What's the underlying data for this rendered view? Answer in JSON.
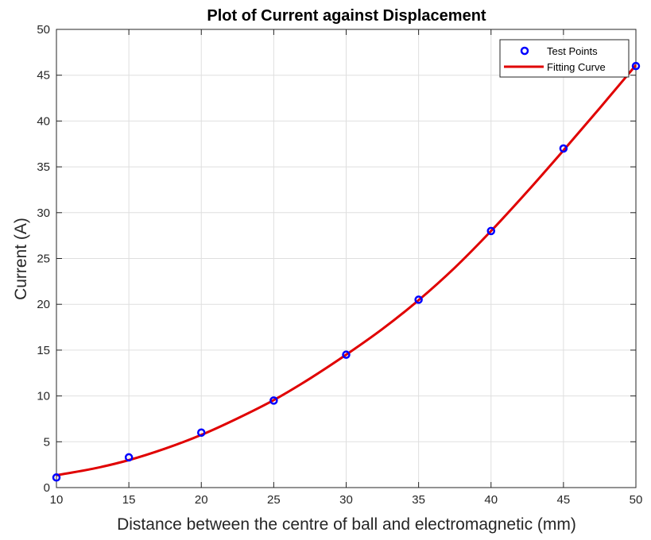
{
  "chart_data": {
    "type": "line",
    "title": "Plot of Current against Displacement",
    "xlabel": "Distance between the centre of ball and electromagnetic (mm)",
    "ylabel": "Current (A)",
    "xlim": [
      10,
      50
    ],
    "ylim": [
      0,
      50
    ],
    "xticks": [
      10,
      15,
      20,
      25,
      30,
      35,
      40,
      45,
      50
    ],
    "yticks": [
      0,
      5,
      10,
      15,
      20,
      25,
      30,
      35,
      40,
      45,
      50
    ],
    "grid": true,
    "legend_position": "top-right",
    "series": [
      {
        "name": "Test Points",
        "kind": "scatter",
        "marker": "circle-open",
        "color": "#0000ff",
        "x": [
          10,
          15,
          20,
          25,
          30,
          35,
          40,
          45,
          50
        ],
        "y": [
          1.1,
          3.3,
          6.0,
          9.5,
          14.5,
          20.5,
          28.0,
          37.0,
          46.0
        ]
      },
      {
        "name": "Fitting Curve",
        "kind": "line",
        "color": "#e00000",
        "x": [
          10,
          12.5,
          15,
          17.5,
          20,
          22.5,
          25,
          27.5,
          30,
          32.5,
          35,
          37.5,
          40,
          42.5,
          45,
          47.5,
          50
        ],
        "y": [
          1.35,
          2.05,
          3.0,
          4.25,
          5.75,
          7.55,
          9.55,
          11.9,
          14.5,
          17.3,
          20.45,
          24.0,
          28.0,
          32.3,
          36.8,
          41.4,
          46.1
        ]
      }
    ]
  }
}
